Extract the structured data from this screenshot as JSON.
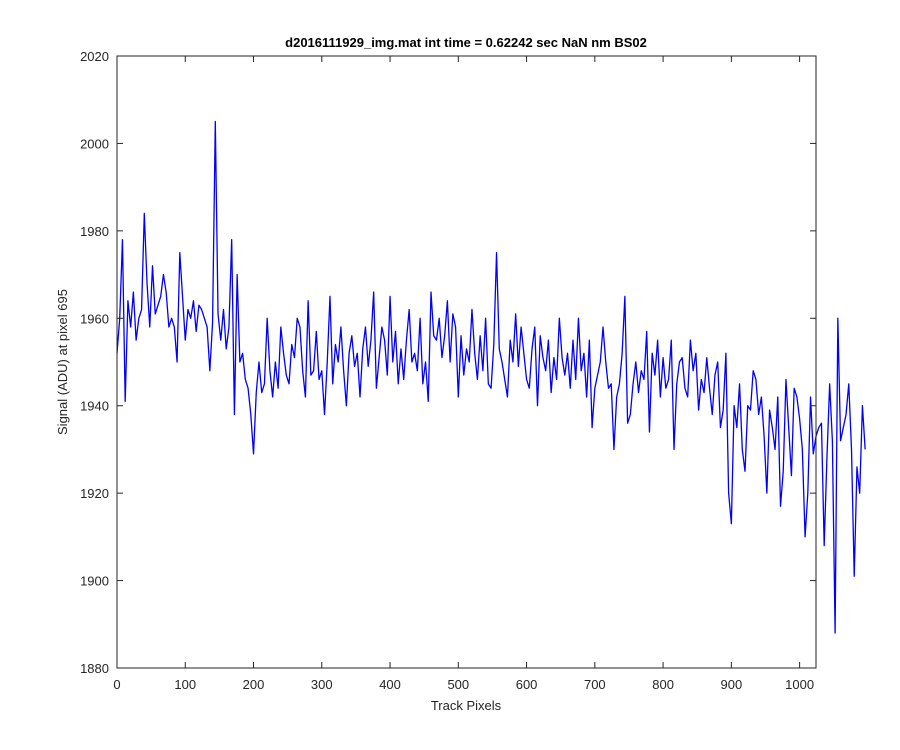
{
  "chart_data": {
    "type": "line",
    "title": "d2016111929_img.mat int time = 0.62242 sec  NaN nm BS02",
    "xlabel": "Track Pixels",
    "ylabel": "Signal (ADU) at pixel 695",
    "xlim": [
      0,
      1024
    ],
    "ylim": [
      1880,
      2020
    ],
    "xticks": [
      0,
      100,
      200,
      300,
      400,
      500,
      600,
      700,
      800,
      900,
      1000
    ],
    "yticks": [
      1880,
      1900,
      1920,
      1940,
      1960,
      1980,
      2000,
      2020
    ],
    "grid": false,
    "line_color": "#0000ff",
    "series": [
      {
        "x_step": 4,
        "x_start": 0,
        "values": [
          1952,
          1960,
          1978,
          1941,
          1964,
          1958,
          1966,
          1955,
          1960,
          1962,
          1984,
          1968,
          1958,
          1972,
          1961,
          1963,
          1965,
          1970,
          1966,
          1958,
          1960,
          1958,
          1950,
          1975,
          1965,
          1955,
          1962,
          1960,
          1964,
          1957,
          1963,
          1962,
          1960,
          1958,
          1948,
          1959,
          2005,
          1961,
          1955,
          1962,
          1953,
          1958,
          1978,
          1938,
          1970,
          1950,
          1952,
          1946,
          1944,
          1938,
          1929,
          1943,
          1950,
          1943,
          1945,
          1960,
          1948,
          1942,
          1950,
          1944,
          1958,
          1952,
          1947,
          1945,
          1954,
          1951,
          1960,
          1958,
          1948,
          1942,
          1964,
          1947,
          1948,
          1957,
          1946,
          1948,
          1938,
          1950,
          1965,
          1945,
          1954,
          1950,
          1958,
          1948,
          1940,
          1952,
          1956,
          1949,
          1952,
          1942,
          1953,
          1958,
          1949,
          1955,
          1966,
          1944,
          1951,
          1958,
          1955,
          1947,
          1965,
          1950,
          1957,
          1945,
          1953,
          1946,
          1955,
          1962,
          1950,
          1952,
          1948,
          1960,
          1945,
          1950,
          1941,
          1966,
          1956,
          1955,
          1960,
          1951,
          1956,
          1964,
          1950,
          1961,
          1958,
          1942,
          1956,
          1947,
          1953,
          1950,
          1962,
          1952,
          1946,
          1956,
          1948,
          1960,
          1945,
          1944,
          1954,
          1975,
          1953,
          1950,
          1946,
          1942,
          1955,
          1950,
          1961,
          1949,
          1958,
          1952,
          1946,
          1944,
          1953,
          1958,
          1940,
          1956,
          1951,
          1948,
          1955,
          1943,
          1951,
          1946,
          1960,
          1951,
          1947,
          1952,
          1944,
          1955,
          1946,
          1960,
          1948,
          1952,
          1942,
          1955,
          1935,
          1944,
          1947,
          1950,
          1958,
          1950,
          1944,
          1945,
          1930,
          1942,
          1945,
          1952,
          1965,
          1936,
          1938,
          1945,
          1950,
          1943,
          1948,
          1946,
          1957,
          1934,
          1952,
          1947,
          1955,
          1942,
          1951,
          1944,
          1946,
          1955,
          1930,
          1945,
          1950,
          1951,
          1944,
          1942,
          1955,
          1948,
          1952,
          1939,
          1946,
          1943,
          1951,
          1944,
          1938,
          1947,
          1950,
          1935,
          1939,
          1952,
          1920,
          1913,
          1940,
          1935,
          1945,
          1930,
          1925,
          1940,
          1939,
          1948,
          1946,
          1938,
          1942,
          1933,
          1920,
          1939,
          1935,
          1930,
          1942,
          1917,
          1925,
          1946,
          1935,
          1924,
          1944,
          1942,
          1937,
          1930,
          1910,
          1920,
          1942,
          1929,
          1933,
          1935,
          1936,
          1908,
          1928,
          1945,
          1932,
          1888,
          1960,
          1932,
          1935,
          1938,
          1945,
          1930,
          1901,
          1926,
          1920,
          1940,
          1930
        ]
      }
    ]
  }
}
